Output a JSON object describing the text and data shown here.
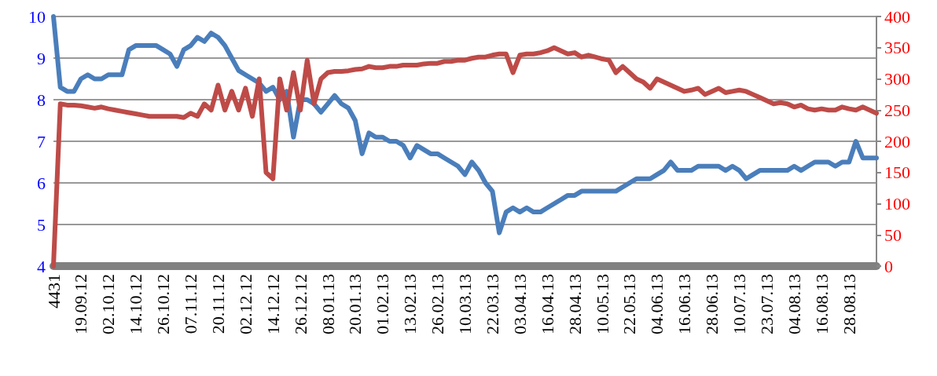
{
  "chart_data": {
    "type": "line",
    "categories": [
      "4431",
      null,
      null,
      null,
      "19.09.12",
      null,
      null,
      null,
      "02.10.12",
      null,
      null,
      null,
      "14.10.12",
      null,
      null,
      null,
      "26.10.12",
      null,
      null,
      null,
      "07.11.12",
      null,
      null,
      null,
      "20.11.12",
      null,
      null,
      null,
      "02.12.12",
      null,
      null,
      null,
      "14.12.12",
      null,
      null,
      null,
      "26.12.12",
      null,
      null,
      null,
      "08.01.13",
      null,
      null,
      null,
      "20.01.13",
      null,
      null,
      null,
      "01.02.13",
      null,
      null,
      null,
      "13.02.13",
      null,
      null,
      null,
      "26.02.13",
      null,
      null,
      null,
      "10.03.13",
      null,
      null,
      null,
      "22.03.13",
      null,
      null,
      null,
      "03.04.13",
      null,
      null,
      null,
      "16.04.13",
      null,
      null,
      null,
      "28.04.13",
      null,
      null,
      null,
      "10.05.13",
      null,
      null,
      null,
      "22.05.13",
      null,
      null,
      null,
      "04.06.13",
      null,
      null,
      null,
      "16.06.13",
      null,
      null,
      null,
      "28.06.13",
      null,
      null,
      null,
      "10.07.13",
      null,
      null,
      null,
      "23.07.13",
      null,
      null,
      null,
      "04.08.13",
      null,
      null,
      null,
      "16.08.13",
      null,
      null,
      null,
      "28.08.13",
      null,
      null,
      null,
      null
    ],
    "series": [
      {
        "color": "#4a7ebb",
        "values": [
          10,
          8.3,
          8.2,
          8.2,
          8.5,
          8.6,
          8.5,
          8.5,
          8.6,
          8.6,
          8.6,
          9.2,
          9.3,
          9.3,
          9.3,
          9.3,
          9.2,
          9.1,
          8.8,
          9.2,
          9.3,
          9.5,
          9.4,
          9.6,
          9.5,
          9.3,
          9.0,
          8.7,
          8.6,
          8.5,
          8.4,
          8.2,
          8.3,
          8.0,
          8.2,
          7.1,
          8.0,
          8.0,
          7.9,
          7.7,
          7.9,
          8.1,
          7.9,
          7.8,
          7.5,
          6.7,
          7.2,
          7.1,
          7.1,
          7.0,
          7.0,
          6.9,
          6.6,
          6.9,
          6.8,
          6.7,
          6.7,
          6.6,
          6.5,
          6.4,
          6.2,
          6.5,
          6.3,
          6.0,
          5.8,
          4.8,
          5.3,
          5.4,
          5.3,
          5.4,
          5.3,
          5.3,
          5.4,
          5.5,
          5.6,
          5.7,
          5.7,
          5.8,
          5.8,
          5.8,
          5.8,
          5.8,
          5.8,
          5.9,
          6.0,
          6.1,
          6.1,
          6.1,
          6.2,
          6.3,
          6.5,
          6.3,
          6.3,
          6.3,
          6.4,
          6.4,
          6.4,
          6.4,
          6.3,
          6.4,
          6.3,
          6.1,
          6.2,
          6.3,
          6.3,
          6.3,
          6.3,
          6.3,
          6.4,
          6.3,
          6.4,
          6.5,
          6.5,
          6.5,
          6.4,
          6.5,
          6.5,
          7.0,
          6.6,
          6.6,
          6.6
        ]
      },
      {
        "color": "#be4b48",
        "axis": "y2",
        "values": [
          0,
          260,
          258,
          258,
          257,
          255,
          253,
          255,
          252,
          250,
          248,
          246,
          244,
          242,
          240,
          240,
          240,
          240,
          240,
          238,
          245,
          240,
          260,
          250,
          290,
          250,
          280,
          250,
          285,
          240,
          300,
          150,
          140,
          300,
          250,
          310,
          250,
          330,
          260,
          300,
          310,
          312,
          312,
          313,
          315,
          316,
          320,
          318,
          318,
          320,
          320,
          322,
          322,
          322,
          324,
          325,
          325,
          328,
          328,
          330,
          330,
          333,
          335,
          335,
          338,
          340,
          340,
          310,
          338,
          340,
          340,
          342,
          345,
          350,
          345,
          340,
          342,
          335,
          338,
          335,
          332,
          330,
          310,
          320,
          310,
          300,
          295,
          285,
          300,
          295,
          290,
          285,
          280,
          282,
          285,
          275,
          280,
          285,
          278,
          280,
          282,
          280,
          275,
          270,
          265,
          260,
          262,
          260,
          255,
          258,
          252,
          250,
          252,
          250,
          250,
          255,
          252,
          250,
          255,
          250,
          245
        ]
      }
    ],
    "ylim": [
      4,
      10
    ],
    "yticks": [
      4,
      5,
      6,
      7,
      8,
      9,
      10
    ],
    "y2lim": [
      0,
      400
    ],
    "y2ticks": [
      0,
      50,
      100,
      150,
      200,
      250,
      300,
      350,
      400
    ],
    "grid": "y",
    "marker": "none",
    "line_style": "solid"
  }
}
